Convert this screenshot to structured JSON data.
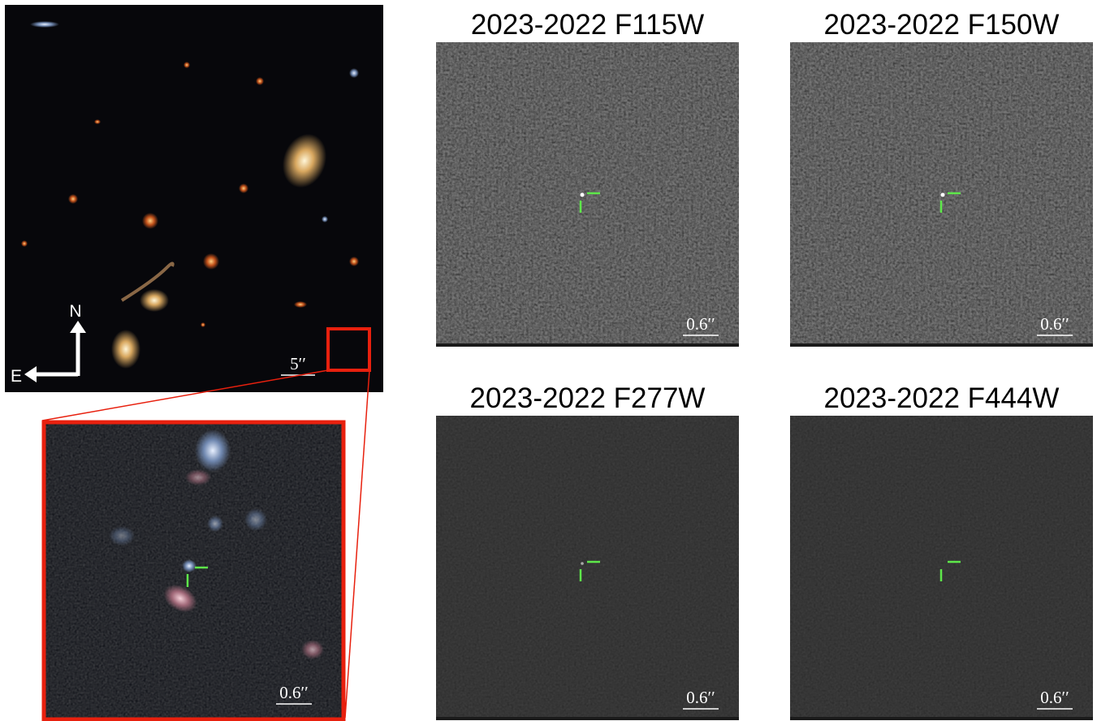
{
  "main_image": {
    "compass": {
      "north": "N",
      "east": "E"
    },
    "scale_bar": "5′′"
  },
  "inset": {
    "scale_bar": "0.6′′"
  },
  "panels": [
    {
      "title": "2023-2022 F115W",
      "scale_bar": "0.6′′"
    },
    {
      "title": "2023-2022 F150W",
      "scale_bar": "0.6′′"
    },
    {
      "title": "2023-2022 F277W",
      "scale_bar": "0.6′′"
    },
    {
      "title": "2023-2022 F444W",
      "scale_bar": "0.6′′"
    }
  ]
}
